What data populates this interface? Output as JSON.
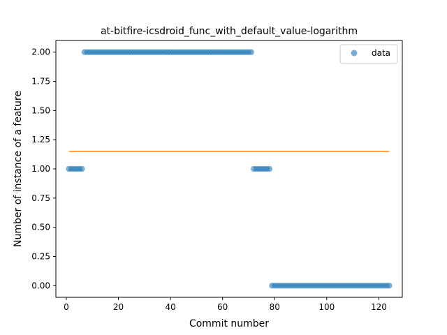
{
  "chart_data": {
    "type": "scatter",
    "title": "at-bitfire-icsdroid_func_with_default_value-logarithm",
    "xlabel": "Commit number",
    "ylabel": "Number of instance of a feature",
    "xlim": [
      -4,
      129
    ],
    "ylim": [
      -0.1,
      2.1
    ],
    "xticks": [
      0,
      20,
      40,
      60,
      80,
      100,
      120
    ],
    "yticks": [
      0.0,
      0.25,
      0.5,
      0.75,
      1.0,
      1.25,
      1.5,
      1.75,
      2.0
    ],
    "ytick_labels": [
      "0.00",
      "0.25",
      "0.50",
      "0.75",
      "1.00",
      "1.25",
      "1.50",
      "1.75",
      "2.00"
    ],
    "legend": {
      "position": "upper right",
      "entries": [
        "data"
      ]
    },
    "colors": {
      "data": "#1f77b4",
      "fit": "#ff7f0e"
    },
    "series": [
      {
        "name": "data",
        "kind": "scatter",
        "segments": [
          {
            "x_start": 1,
            "x_end": 6,
            "y": 1
          },
          {
            "x_start": 7,
            "x_end": 71,
            "y": 2
          },
          {
            "x_start": 72,
            "x_end": 78,
            "y": 1
          },
          {
            "x_start": 79,
            "x_end": 124,
            "y": 0
          }
        ]
      },
      {
        "kind": "line",
        "x": [
          1,
          124
        ],
        "y": [
          1.15,
          1.15
        ]
      }
    ]
  }
}
